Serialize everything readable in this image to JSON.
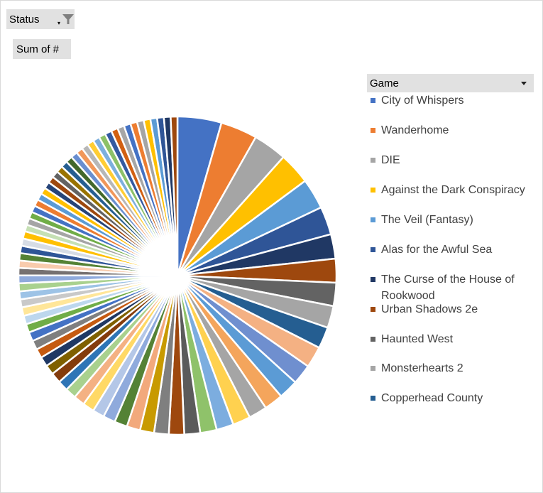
{
  "status_field": {
    "label": "Status",
    "icon": "filter-icon"
  },
  "sum_field": {
    "label": "Sum of #"
  },
  "game_field": {
    "label": "Game",
    "icon": "chevron-down-icon"
  },
  "legend": [
    {
      "label": "City of Whispers",
      "color": "#4472c4"
    },
    {
      "label": "Wanderhome",
      "color": "#ed7d31"
    },
    {
      "label": "DIE",
      "color": "#a5a5a5"
    },
    {
      "label": "Against the Dark Conspiracy",
      "color": "#ffc000"
    },
    {
      "label": "The Veil (Fantasy)",
      "color": "#5b9bd5"
    },
    {
      "label": "Alas for the Awful Sea",
      "color": "#2f5597"
    },
    {
      "label": "The Curse of the House of Rookwood",
      "color": "#203864"
    },
    {
      "label": "Urban Shadows 2e",
      "color": "#9e480e"
    },
    {
      "label": "Haunted West",
      "color": "#636363"
    },
    {
      "label": "Monsterhearts 2",
      "color": "#a5a5a5"
    },
    {
      "label": "Copperhead County",
      "color": "#255e91"
    }
  ],
  "chart_data": {
    "type": "pie",
    "title": "",
    "legend_position": "right",
    "values": [
      7.2,
      6.0,
      5.5,
      5.2,
      5.0,
      4.6,
      4.0,
      3.9,
      3.8,
      3.6,
      3.5,
      3.5,
      3.3,
      3.2,
      3.1,
      3.0,
      2.9,
      2.8,
      2.7,
      2.6,
      2.5,
      2.4,
      2.3,
      2.2,
      2.1,
      2.0,
      1.9,
      1.9,
      1.8,
      1.8,
      1.7,
      1.7,
      1.6,
      1.6,
      1.5,
      1.5,
      1.5,
      1.4,
      1.4,
      1.4,
      1.3,
      1.3,
      1.3,
      1.3,
      1.2,
      1.2,
      1.2,
      1.2,
      1.2,
      1.2,
      1.1,
      1.1,
      1.1,
      1.1,
      1.1,
      1.1,
      1.1,
      1.1,
      1.1,
      1.1,
      1.1,
      1.1,
      1.1,
      1.1,
      1.1,
      1.1,
      1.1,
      1.1,
      1.1,
      1.1,
      1.1,
      1.1,
      1.1,
      1.1,
      1.1,
      1.1,
      1.1,
      1.1,
      1.1,
      1.1
    ],
    "palette": [
      "#4472c4",
      "#ed7d31",
      "#a5a5a5",
      "#ffc000",
      "#5b9bd5",
      "#2f5597",
      "#203864",
      "#9e480e",
      "#636363",
      "#a5a5a5",
      "#255e91",
      "#f4b183",
      "#6f8fcf",
      "#5b9bd5",
      "#f4a55c",
      "#a5a5a5",
      "#ffd14f",
      "#7caddf",
      "#8fc26a",
      "#5b5b5b",
      "#9e480e",
      "#7f7f7f",
      "#c89a00",
      "#f2a97c",
      "#548235",
      "#8faadc",
      "#b4c7e7",
      "#ffd966",
      "#f4b183",
      "#a9d18e",
      "#2e75b6",
      "#843c0c",
      "#7f6000",
      "#1f3864",
      "#c55a11",
      "#7f7f7f",
      "#4472c4",
      "#70ad47",
      "#bdd7ee",
      "#ffe699",
      "#c9c9c9",
      "#9dc3e6",
      "#a9d18e",
      "#8faadc",
      "#767171",
      "#f8cbad",
      "#548235",
      "#2f5597",
      "#d6dce5",
      "#ffc000",
      "#c5e0b4",
      "#a5a5a5",
      "#70ad47",
      "#4472c4",
      "#ed7d31",
      "#5b9bd5",
      "#ffc000",
      "#264478",
      "#9e480e",
      "#636363",
      "#997300",
      "#255e91",
      "#43682b",
      "#698ed0",
      "#f1975a",
      "#b7b7b7",
      "#ffcd33",
      "#7cafdd",
      "#8cc168",
      "#335aa1",
      "#d26012",
      "#a6a6a6"
    ]
  }
}
